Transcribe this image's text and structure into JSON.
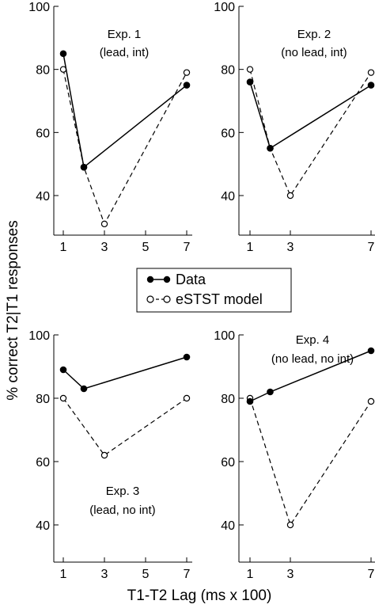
{
  "figure": {
    "ylabel": "% correct T2|T1 responses",
    "xlabel": "T1-T2 Lag (ms x 100)"
  },
  "legend": {
    "data_label": "Data",
    "model_label": "eSTST model"
  },
  "chart_data": [
    {
      "type": "line",
      "annotation": [
        "Exp. 1",
        "(lead, int)"
      ],
      "xlim": [
        1,
        7
      ],
      "ylim": [
        30,
        100
      ],
      "xticks": [
        1,
        3,
        5,
        7
      ],
      "yticks": [
        40,
        60,
        80,
        100
      ],
      "series": [
        {
          "name": "Data",
          "x": [
            1,
            2,
            7
          ],
          "values": [
            85,
            49,
            75
          ],
          "style": "solid-filled"
        },
        {
          "name": "eSTST model",
          "x": [
            1,
            2,
            3,
            7
          ],
          "values": [
            80,
            49,
            31,
            79
          ],
          "style": "dashed-open"
        }
      ]
    },
    {
      "type": "line",
      "annotation": [
        "Exp. 2",
        "(no lead, int)"
      ],
      "xlim": [
        1,
        7
      ],
      "ylim": [
        30,
        100
      ],
      "xticks": [
        1,
        3,
        7
      ],
      "yticks": [
        40,
        60,
        80,
        100
      ],
      "series": [
        {
          "name": "Data",
          "x": [
            1,
            2,
            7
          ],
          "values": [
            76,
            55,
            75
          ],
          "style": "solid-filled"
        },
        {
          "name": "eSTST model",
          "x": [
            1,
            2,
            3,
            7
          ],
          "values": [
            80,
            55,
            40,
            79
          ],
          "style": "dashed-open"
        }
      ]
    },
    {
      "type": "line",
      "annotation": [
        "Exp. 3",
        "(lead, no int)"
      ],
      "xlim": [
        1,
        7
      ],
      "ylim": [
        30,
        100
      ],
      "xticks": [
        1,
        3,
        5,
        7
      ],
      "yticks": [
        40,
        60,
        80,
        100
      ],
      "series": [
        {
          "name": "Data",
          "x": [
            1,
            2,
            7
          ],
          "values": [
            89,
            83,
            93
          ],
          "style": "solid-filled"
        },
        {
          "name": "eSTST model",
          "x": [
            1,
            3,
            7
          ],
          "values": [
            80,
            62,
            80
          ],
          "style": "dashed-open"
        }
      ]
    },
    {
      "type": "line",
      "annotation": [
        "Exp. 4",
        "(no lead, no int)"
      ],
      "xlim": [
        1,
        7
      ],
      "ylim": [
        30,
        100
      ],
      "xticks": [
        1,
        3,
        7
      ],
      "yticks": [
        40,
        60,
        80,
        100
      ],
      "series": [
        {
          "name": "Data",
          "x": [
            1,
            2,
            7
          ],
          "values": [
            79,
            82,
            95
          ],
          "style": "solid-filled"
        },
        {
          "name": "eSTST model",
          "x": [
            1,
            3,
            7
          ],
          "values": [
            80,
            40,
            79
          ],
          "style": "dashed-open"
        }
      ]
    }
  ]
}
